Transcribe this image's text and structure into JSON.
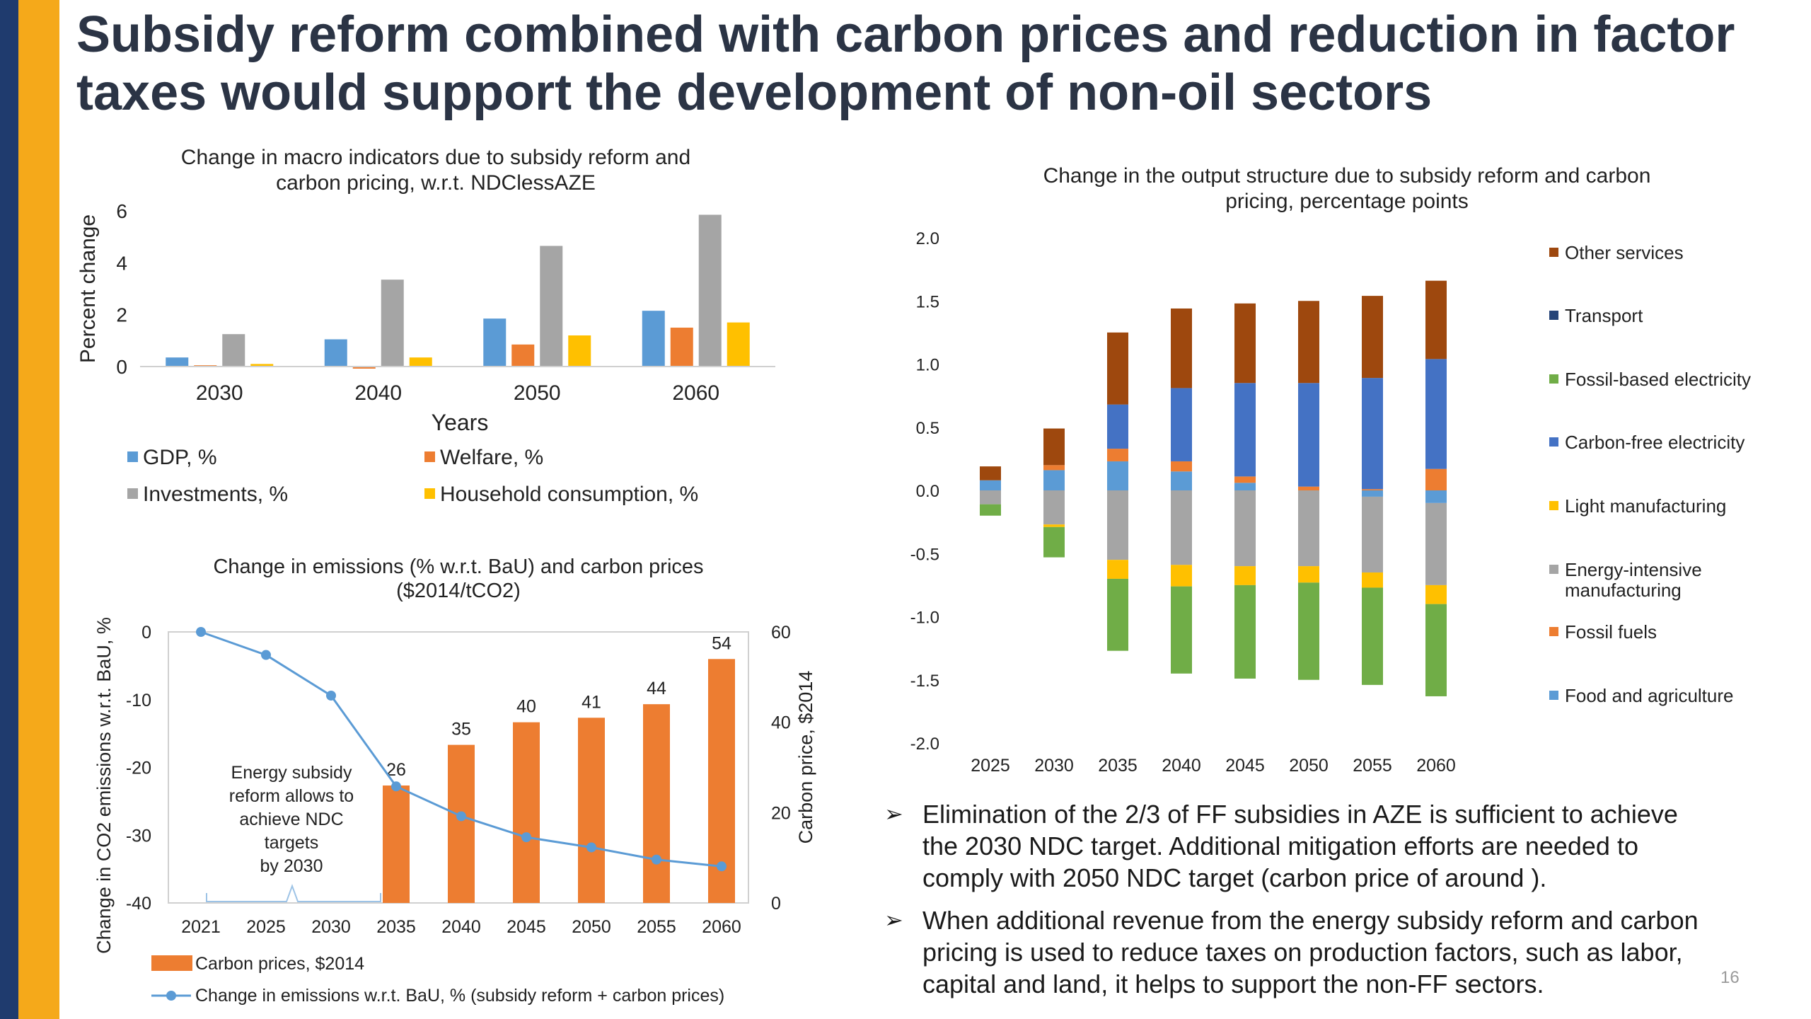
{
  "slide": {
    "title": "Subsidy reform combined with carbon prices and reduction in factor taxes would support the development of non-oil sectors",
    "page_number": "16",
    "bullets": [
      "Elimination of the 2/3 of FF subsidies in AZE is sufficient to achieve the 2030 NDC target. Additional mitigation efforts are needed to comply with 2050 NDC target (carbon price of around ).",
      "When additional revenue from the energy subsidy reform and carbon pricing is used to reduce taxes on production factors, such as labor, capital and land, it helps to support the non-FF sectors."
    ],
    "bullet_symbol": "➢"
  },
  "chart_data": [
    {
      "id": "macro",
      "type": "bar",
      "title": "Change in macro indicators due to subsidy reform and carbon pricing, w.r.t. NDClessAZE",
      "xlabel": "Years",
      "ylabel": "Percent change",
      "ylim": [
        0,
        6
      ],
      "yticks": [
        0,
        2,
        4,
        6
      ],
      "categories": [
        "2030",
        "2040",
        "2050",
        "2060"
      ],
      "series": [
        {
          "name": "GDP, %",
          "color": "#5b9bd5",
          "values": [
            0.35,
            1.05,
            1.85,
            2.15
          ]
        },
        {
          "name": "Welfare, %",
          "color": "#ed7d31",
          "values": [
            0.05,
            -0.08,
            0.85,
            1.5
          ]
        },
        {
          "name": "Investments, %",
          "color": "#a5a5a5",
          "values": [
            1.25,
            3.35,
            4.65,
            5.85
          ]
        },
        {
          "name": "Household consumption, %",
          "color": "#ffc000",
          "values": [
            0.1,
            0.35,
            1.2,
            1.7
          ]
        }
      ],
      "legend_position": "bottom",
      "grid": false
    },
    {
      "id": "output",
      "type": "bar",
      "stacked": true,
      "title": "Change in the output structure due to subsidy reform and carbon pricing, percentage points",
      "ylim": [
        -2.0,
        2.0
      ],
      "yticks": [
        "2.0",
        "1.5",
        "1.0",
        "0.5",
        "0.0",
        "-0.5",
        "-1.0",
        "-1.5",
        "-2.0"
      ],
      "categories": [
        "2025",
        "2030",
        "2035",
        "2040",
        "2045",
        "2050",
        "2055",
        "2060"
      ],
      "legend_position": "right",
      "grid": false,
      "series": [
        {
          "name": "Other services",
          "color": "#9e480e",
          "values": [
            0.11,
            0.29,
            0.57,
            0.63,
            0.63,
            0.65,
            0.65,
            0.62
          ]
        },
        {
          "name": "Transport",
          "color": "#264478",
          "values": [
            0.0,
            0.0,
            0.0,
            0.0,
            0.0,
            0.0,
            0.0,
            0.0
          ]
        },
        {
          "name": "Fossil-based electricity",
          "color": "#70ad47",
          "values": [
            -0.09,
            -0.24,
            -0.57,
            -0.69,
            -0.74,
            -0.77,
            -0.77,
            -0.73
          ]
        },
        {
          "name": "Carbon-free electricity",
          "color": "#4472c4",
          "values": [
            0.0,
            0.0,
            0.35,
            0.58,
            0.74,
            0.82,
            0.88,
            0.87
          ]
        },
        {
          "name": "Light manufacturing",
          "color": "#ffc000",
          "values": [
            0.0,
            -0.02,
            -0.15,
            -0.17,
            -0.15,
            -0.13,
            -0.12,
            -0.15
          ]
        },
        {
          "name": "Energy-intensive manufacturing",
          "color": "#a5a5a5",
          "values": [
            -0.11,
            -0.27,
            -0.55,
            -0.59,
            -0.6,
            -0.6,
            -0.6,
            -0.65
          ]
        },
        {
          "name": "Fossil fuels",
          "color": "#ed7d31",
          "values": [
            0.0,
            0.04,
            0.1,
            0.08,
            0.05,
            0.03,
            0.01,
            0.17
          ]
        },
        {
          "name": "Food and agriculture",
          "color": "#5b9bd5",
          "values": [
            0.08,
            0.16,
            0.23,
            0.15,
            0.06,
            0.0,
            -0.05,
            -0.1
          ]
        }
      ]
    },
    {
      "id": "emissions",
      "type": "bar",
      "combo_line": true,
      "title": "Change in emissions (% w.r.t. BaU) and carbon prices ($2014/tCO2)",
      "ylabel": "Change in CO2 emissions w.r.t. BaU, %",
      "y2label": "Carbon price, $2014",
      "ylim": [
        -40,
        0
      ],
      "yticks": [
        "0",
        "-10",
        "-20",
        "-30",
        "-40"
      ],
      "y2lim": [
        0,
        60
      ],
      "y2ticks": [
        "60",
        "40",
        "20",
        "0"
      ],
      "categories": [
        "2021",
        "2025",
        "2030",
        "2035",
        "2040",
        "2045",
        "2050",
        "2055",
        "2060"
      ],
      "bar_series": {
        "name": "Carbon prices, $2014",
        "color": "#ed7d31",
        "values": [
          null,
          null,
          null,
          26,
          35,
          40,
          41,
          44,
          54
        ],
        "labels": [
          "",
          "",
          "",
          "26",
          "35",
          "40",
          "41",
          "44",
          "54"
        ]
      },
      "line_series": {
        "name": "Change in emissions w.r.t. BaU, % (subsidy reform + carbon prices)",
        "color": "#5b9bd5",
        "values": [
          0,
          -3.4,
          -9.4,
          -22.8,
          -27.2,
          -30.3,
          -31.8,
          -33.6,
          -34.6
        ]
      },
      "annotation": [
        "Energy subsidy",
        "reform allows to",
        "achieve NDC",
        "targets",
        "by 2030"
      ],
      "legend_position": "bottom",
      "grid": false
    }
  ]
}
